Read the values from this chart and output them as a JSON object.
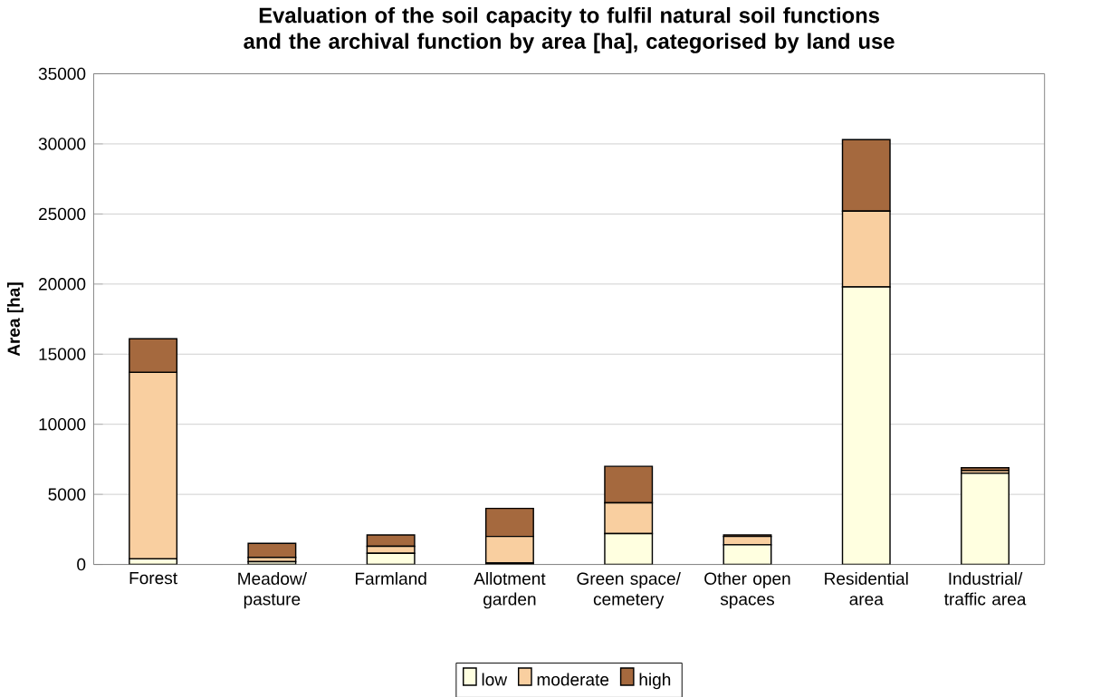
{
  "chart_data": {
    "type": "bar",
    "stacked": true,
    "title": "Evaluation of the soil capacity to fulfil natural soil functions  and the archival function by area [ha], categorised by land use",
    "ylabel": "Area [ha]",
    "categories": [
      "Forest",
      "Meadow/ pasture",
      "Farmland",
      "Allotment garden",
      "Green space/ cemetery",
      "Other open spaces",
      "Residential area",
      "Industrial/ traffic area"
    ],
    "series": [
      {
        "name": "low",
        "color": "#ffffe0",
        "values": [
          400,
          200,
          800,
          100,
          2200,
          1400,
          19800,
          6500
        ]
      },
      {
        "name": "moderate",
        "color": "#f9cfa0",
        "values": [
          13300,
          300,
          500,
          1900,
          2200,
          600,
          5400,
          200
        ]
      },
      {
        "name": "high",
        "color": "#a5693e",
        "values": [
          2400,
          1000,
          800,
          2000,
          2600,
          100,
          5100,
          200
        ]
      }
    ],
    "ylim": [
      0,
      35000
    ],
    "yticks": [
      0,
      5000,
      10000,
      15000,
      20000,
      25000,
      30000,
      35000
    ],
    "grid": "y",
    "legend": "bottom"
  }
}
